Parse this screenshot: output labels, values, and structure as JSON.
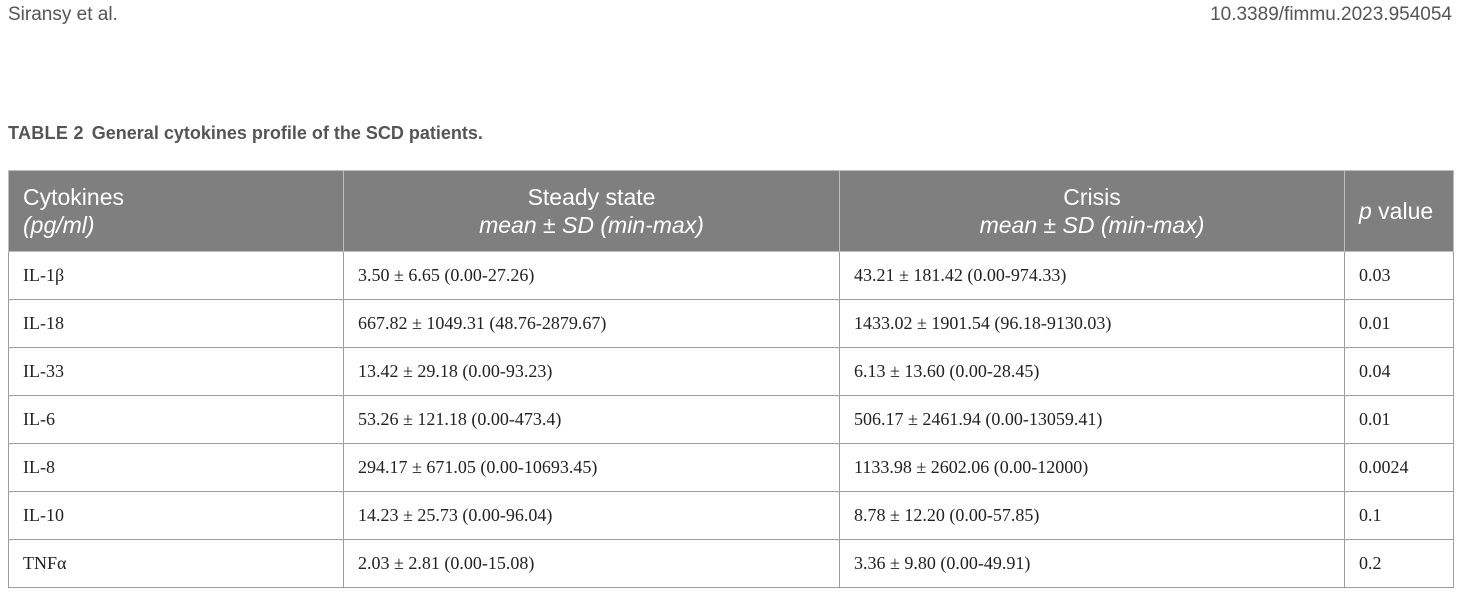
{
  "header": {
    "authors": "Siransy et al.",
    "doi": "10.3389/fimmu.2023.954054"
  },
  "caption": {
    "label": "TABLE 2",
    "text": "General cytokines profile of the SCD patients."
  },
  "table": {
    "columns": [
      {
        "main": "Cytokines",
        "sub": "(pg/ml)"
      },
      {
        "main": "Steady state",
        "sub": "mean ± SD (min-max)"
      },
      {
        "main": "Crisis",
        "sub": "mean ± SD (min-max)"
      },
      {
        "italic": "p",
        "rest": " value"
      }
    ],
    "rows": [
      [
        "IL-1β",
        "3.50 ± 6.65 (0.00-27.26)",
        "43.21 ± 181.42 (0.00-974.33)",
        "0.03"
      ],
      [
        "IL-18",
        "667.82 ± 1049.31 (48.76-2879.67)",
        "1433.02 ± 1901.54 (96.18-9130.03)",
        "0.01"
      ],
      [
        "IL-33",
        "13.42 ± 29.18 (0.00-93.23)",
        "6.13 ± 13.60 (0.00-28.45)",
        "0.04"
      ],
      [
        "IL-6",
        "53.26 ± 121.18 (0.00-473.4)",
        "506.17 ± 2461.94 (0.00-13059.41)",
        "0.01"
      ],
      [
        "IL-8",
        "294.17 ± 671.05 (0.00-10693.45)",
        "1133.98 ± 2602.06 (0.00-12000)",
        "0.0024"
      ],
      [
        "IL-10",
        "14.23 ± 25.73 (0.00-96.04)",
        "8.78 ± 12.20 (0.00-57.85)",
        "0.1"
      ],
      [
        "TNFα",
        "2.03 ± 2.81 (0.00-15.08)",
        "3.36 ± 9.80 (0.00-49.91)",
        "0.2"
      ]
    ]
  },
  "colors": {
    "header_bg": "#7f7f7f",
    "header_text": "#ffffff",
    "border": "#9e9e9e"
  }
}
